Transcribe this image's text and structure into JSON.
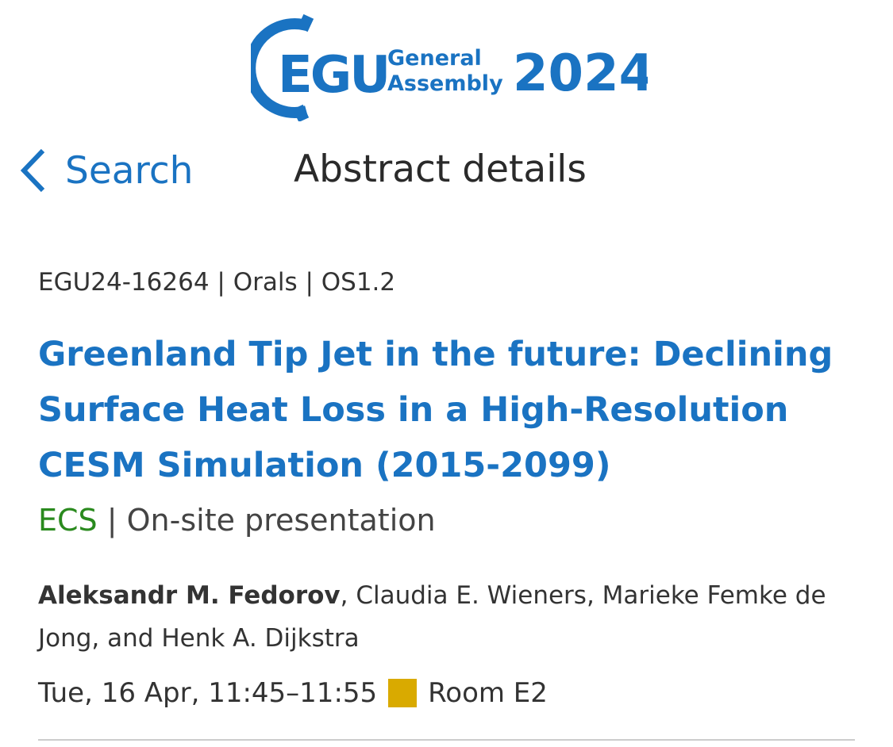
{
  "logo": {
    "acronym": "EGU",
    "line1": "General",
    "line2": "Assembly",
    "year": "2024",
    "color": "#1a73c2"
  },
  "nav": {
    "back_label": "Search",
    "page_title": "Abstract details",
    "back_icon": "chevron-left-icon"
  },
  "abstract": {
    "meta": "EGU24-16264 | Orals | OS1.2",
    "title": "Greenland Tip Jet in the future: Declining Surface Heat Loss in a High-Resolution CESM Simulation (2015-2099)",
    "ecs": "ECS",
    "separator": " | ",
    "presentation": "On-site presentation",
    "presenting_author": "Aleksandr M. Fedorov",
    "other_authors": ", Claudia E. Wieners, Marieke Femke de Jong, and Henk A. Dijkstra",
    "time": "Tue, 16 Apr, 11:45–11:55",
    "room": "Room E2",
    "room_color": "#d9aa00"
  }
}
